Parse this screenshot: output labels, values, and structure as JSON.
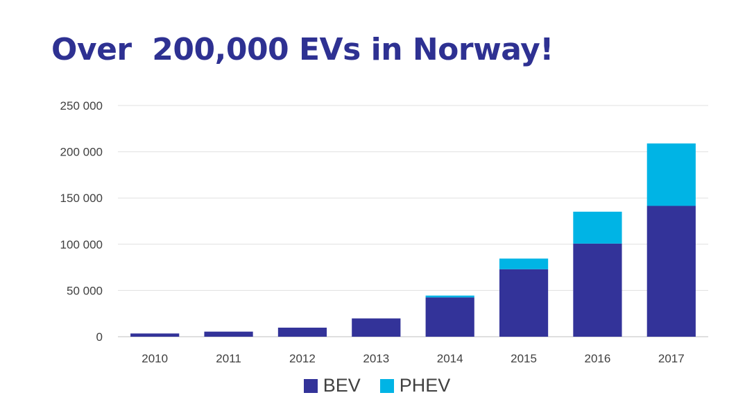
{
  "title": "Over  200,000 EVs in Norway!",
  "chart_data": {
    "type": "bar",
    "stacked": true,
    "title": "Over  200,000 EVs in Norway!",
    "categories": [
      "2010",
      "2011",
      "2012",
      "2013",
      "2014",
      "2015",
      "2016",
      "2017"
    ],
    "series": [
      {
        "name": "BEV",
        "color": "#333399",
        "values": [
          3500,
          5500,
          9800,
          19800,
          42500,
          73000,
          100700,
          141500
        ]
      },
      {
        "name": "PHEV",
        "color": "#00b4e5",
        "values": [
          0,
          0,
          0,
          0,
          2000,
          11500,
          34500,
          67500
        ]
      }
    ],
    "ylim": [
      0,
      250000
    ],
    "yticks": [
      0,
      50000,
      100000,
      150000,
      200000,
      250000
    ],
    "ytick_labels": [
      "0",
      "50 000",
      "100 000",
      "150 000",
      "200 000",
      "250 000"
    ],
    "grid": true,
    "legend_position": "bottom"
  }
}
